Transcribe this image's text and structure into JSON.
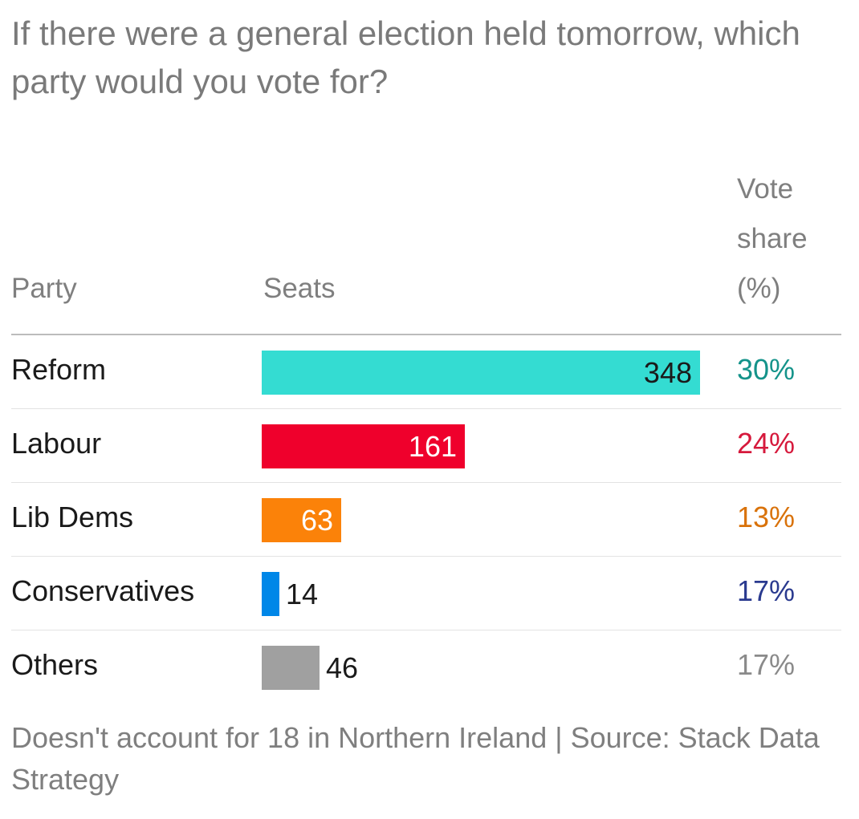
{
  "chart_data": {
    "type": "bar",
    "orientation": "horizontal",
    "title": "If there were a general election held tomorrow, which party would you vote for?",
    "columns": {
      "party": "Party",
      "seats": "Seats",
      "vote_share": "Vote share (%)"
    },
    "categories": [
      "Reform",
      "Labour",
      "Lib Dems",
      "Conservatives",
      "Others"
    ],
    "series": [
      {
        "name": "Seats",
        "values": [
          348,
          161,
          63,
          14,
          46
        ]
      }
    ],
    "vote_share_labels": [
      "30%",
      "24%",
      "13%",
      "17%",
      "17%"
    ],
    "colors": [
      "#34dcd2",
      "#ef002c",
      "#fb8209",
      "#0087e8",
      "#a0a0a0"
    ],
    "label_colors": [
      "#1a1a1a",
      "#ffffff",
      "#ffffff",
      "#1a1a1a",
      "#1a1a1a"
    ],
    "vote_share_colors": [
      "#14938a",
      "#d6193c",
      "#d9720a",
      "#2a3a8f",
      "#8a8a8a"
    ],
    "xlim": [
      0,
      348
    ],
    "grid": false,
    "legend": "none",
    "footnote": "Doesn't account for 18 in Northern Ireland | Source: Stack Data Strategy"
  }
}
